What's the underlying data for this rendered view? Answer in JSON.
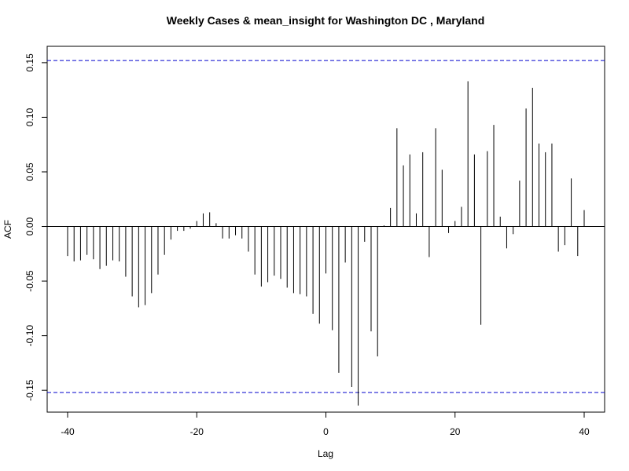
{
  "chart_data": {
    "type": "bar",
    "title": "Weekly Cases & mean_insight for Washington DC , Maryland",
    "xlabel": "Lag",
    "ylabel": "ACF",
    "xlim": [
      -40,
      40
    ],
    "ylim": [
      -0.17,
      0.165
    ],
    "x_ticks": [
      -40,
      -20,
      0,
      20,
      40
    ],
    "x_tick_labels": [
      "-40",
      "-20",
      "0",
      "20",
      "40"
    ],
    "y_ticks": [
      -0.15,
      -0.1,
      -0.05,
      0.0,
      0.05,
      0.1,
      0.15
    ],
    "y_tick_labels": [
      "-0.15",
      "-0.10",
      "-0.05",
      "0.00",
      "0.05",
      "0.10",
      "0.15"
    ],
    "confidence_bound": 0.152,
    "bound_color": "#0000cc",
    "bar_color": "#000000",
    "grid": false,
    "lags": [
      -40,
      -39,
      -38,
      -37,
      -36,
      -35,
      -34,
      -33,
      -32,
      -31,
      -30,
      -29,
      -28,
      -27,
      -26,
      -25,
      -24,
      -23,
      -22,
      -21,
      -20,
      -19,
      -18,
      -17,
      -16,
      -15,
      -14,
      -13,
      -12,
      -11,
      -10,
      -9,
      -8,
      -7,
      -6,
      -5,
      -4,
      -3,
      -2,
      -1,
      0,
      1,
      2,
      3,
      4,
      5,
      6,
      7,
      8,
      9,
      10,
      11,
      12,
      13,
      14,
      15,
      16,
      17,
      18,
      19,
      20,
      21,
      22,
      23,
      24,
      25,
      26,
      27,
      28,
      29,
      30,
      31,
      32,
      33,
      34,
      35,
      36,
      37,
      38,
      39,
      40
    ],
    "values": [
      -0.027,
      -0.032,
      -0.031,
      -0.026,
      -0.03,
      -0.039,
      -0.036,
      -0.031,
      -0.032,
      -0.046,
      -0.064,
      -0.074,
      -0.072,
      -0.061,
      -0.044,
      -0.026,
      -0.012,
      -0.004,
      -0.004,
      -0.002,
      0.005,
      0.012,
      0.013,
      0.003,
      -0.011,
      -0.011,
      -0.008,
      -0.011,
      -0.023,
      -0.044,
      -0.055,
      -0.051,
      -0.045,
      -0.048,
      -0.056,
      -0.061,
      -0.062,
      -0.064,
      -0.08,
      -0.089,
      -0.043,
      -0.095,
      -0.134,
      -0.033,
      -0.147,
      -0.164,
      -0.014,
      -0.096,
      -0.119,
      0.001,
      0.017,
      0.09,
      0.056,
      0.066,
      0.012,
      0.068,
      -0.028,
      0.09,
      0.052,
      -0.006,
      0.005,
      0.018,
      0.133,
      0.066,
      -0.09,
      0.069,
      0.093,
      0.009,
      -0.02,
      -0.007,
      0.042,
      0.108,
      0.127,
      0.076,
      0.068,
      0.076,
      -0.023,
      -0.017,
      0.044,
      -0.027,
      0.015
    ]
  }
}
